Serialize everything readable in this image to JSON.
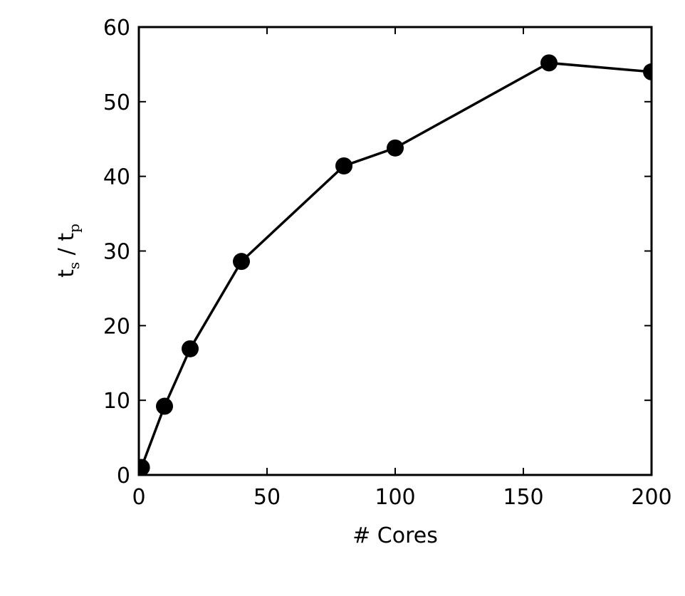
{
  "chart_data": {
    "type": "line",
    "xlabel": "# Cores",
    "ylabel": [
      "t",
      "s",
      " / t",
      "p"
    ],
    "x": [
      1,
      10,
      20,
      40,
      80,
      100,
      160,
      200
    ],
    "series": [
      {
        "color": "#000000",
        "values": [
          1,
          9.2,
          16.9,
          28.6,
          41.4,
          43.8,
          55.2,
          54.0
        ]
      }
    ],
    "xlim": [
      0,
      200
    ],
    "xticks": [
      0,
      50,
      100,
      150,
      200
    ],
    "ylim": [
      0,
      60
    ],
    "yticks": [
      0,
      10,
      20,
      30,
      40,
      50,
      60
    ],
    "grid": false
  }
}
